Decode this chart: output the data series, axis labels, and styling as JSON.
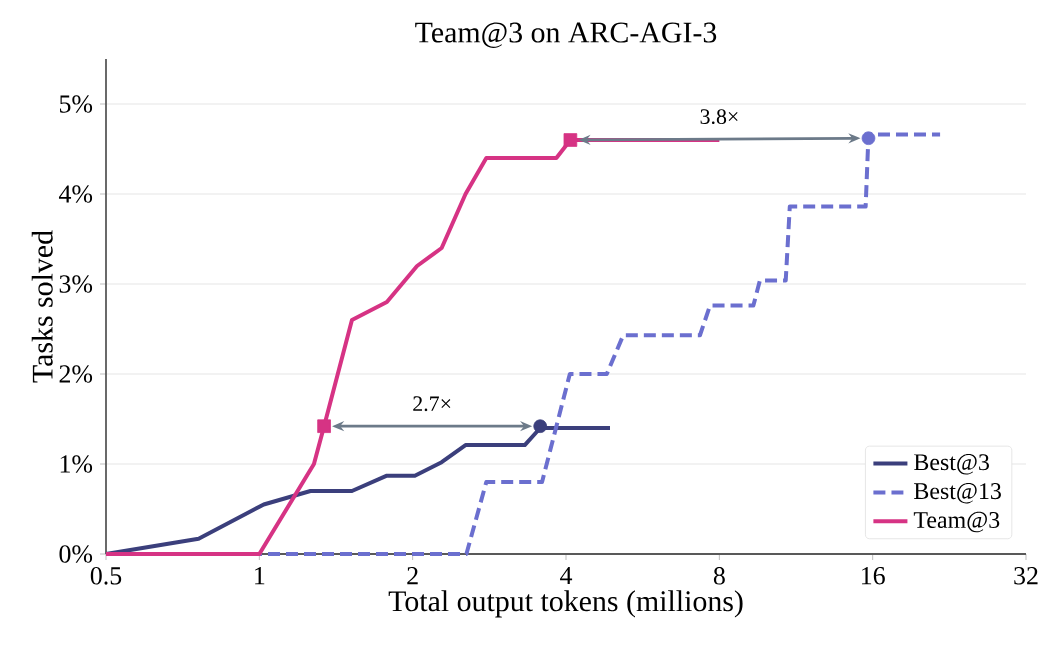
{
  "chart_data": {
    "type": "line",
    "title": "Team@3 on ARC-AGI-3",
    "xlabel": "Total output tokens (millions)",
    "ylabel": "Tasks solved",
    "log": "x",
    "grid": "y",
    "legend": "bottom right",
    "xlim": [
      0.5,
      32
    ],
    "xticks": [
      0.5,
      1,
      2,
      4,
      8,
      16,
      32
    ],
    "ylim": [
      0,
      5.5
    ],
    "yticks": [
      {
        "value": 0,
        "label": "0%"
      },
      {
        "value": 1,
        "label": "1%"
      },
      {
        "value": 2,
        "label": "2%"
      },
      {
        "value": 3,
        "label": "3%"
      },
      {
        "value": 4,
        "label": "4%"
      },
      {
        "value": 5,
        "label": "5%"
      }
    ],
    "series": [
      {
        "name": "Best@3",
        "color": "#3b3f7c",
        "x": [
          0.5,
          0.76,
          1.02,
          1.26,
          1.52,
          1.78,
          2.02,
          2.28,
          2.54,
          3.32,
          3.56,
          4.88
        ],
        "values": [
          0,
          0.17,
          0.55,
          0.7,
          0.7,
          0.87,
          0.87,
          1.02,
          1.21,
          1.21,
          1.4,
          1.4
        ]
      },
      {
        "name": "Best@13",
        "color": "#6b6fcf",
        "line_style": "dashed",
        "x": [
          0.5,
          2.55,
          2.79,
          3.59,
          4.07,
          4.81,
          5.18,
          7.33,
          7.67,
          9.33,
          9.61,
          10.8,
          11.0,
          15.5,
          15.7,
          21.7
        ],
        "values": [
          0,
          0,
          0.8,
          0.8,
          2.0,
          2.0,
          2.43,
          2.43,
          2.76,
          2.76,
          3.04,
          3.04,
          3.86,
          3.86,
          4.66,
          4.66
        ]
      },
      {
        "name": "Team@3",
        "color": "#d63384",
        "x": [
          0.5,
          1.0,
          1.28,
          1.34,
          1.52,
          1.78,
          2.04,
          2.28,
          2.54,
          2.79,
          3.83,
          4.08,
          8.0
        ],
        "values": [
          0,
          0,
          1.0,
          1.42,
          2.6,
          2.8,
          3.2,
          3.4,
          4.0,
          4.4,
          4.4,
          4.6,
          4.6
        ]
      },
      {
        "type": "scatter",
        "marker": "square",
        "color": "#d63384",
        "x": [
          1.34,
          4.08
        ],
        "values": [
          1.42,
          4.6
        ]
      },
      {
        "type": "scatter",
        "marker": "circle",
        "color": "#3b3f7c",
        "x": [
          3.56
        ],
        "values": [
          1.42
        ]
      },
      {
        "type": "scatter",
        "marker": "circle",
        "color": "#6b6fcf",
        "x": [
          15.7
        ],
        "values": [
          4.62
        ]
      }
    ],
    "annotations": [
      "2.7×",
      "3.8×"
    ]
  }
}
